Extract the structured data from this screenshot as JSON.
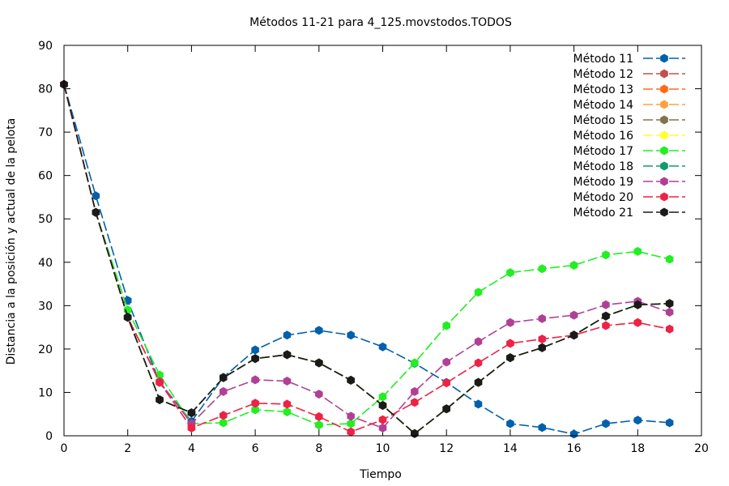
{
  "chart_data": {
    "type": "line",
    "title": "Métodos 11-21 para 4_125.movstodos.TODOS",
    "xlabel": "Tiempo",
    "ylabel": "Distancia a la posición y actual de la pelota",
    "xlim": [
      0,
      20
    ],
    "ylim": [
      0,
      90
    ],
    "xticks": [
      0,
      2,
      4,
      6,
      8,
      10,
      12,
      14,
      16,
      18,
      20
    ],
    "yticks": [
      0,
      10,
      20,
      30,
      40,
      50,
      60,
      70,
      80,
      90
    ],
    "legend_position": "top-right",
    "x": [
      0,
      1,
      2,
      3,
      4,
      5,
      6,
      7,
      8,
      9,
      10,
      11,
      12,
      13,
      14,
      15,
      16,
      17,
      18,
      19
    ],
    "series": [
      {
        "name": "Método 11",
        "color": "#0060ad",
        "values": [
          81,
          55.3,
          31.2,
          12.3,
          3.3,
          13.5,
          19.8,
          23.2,
          24.3,
          23.2,
          20.5,
          16.7,
          12.3,
          7.3,
          2.8,
          1.9,
          0.4,
          2.8,
          3.6,
          3.0
        ]
      },
      {
        "name": "Método 12",
        "color": "#c0504d",
        "values": [
          81,
          51.5,
          27.3,
          8.3,
          5.3,
          13.4,
          17.8,
          18.7,
          16.8,
          12.8,
          7.0,
          0.5,
          6.2,
          12.3,
          18.0,
          20.3,
          23.2,
          27.6,
          30.2,
          30.5
        ]
      },
      {
        "name": "Método 13",
        "color": "#ff6a1a",
        "values": [
          81,
          51.5,
          27.3,
          8.3,
          5.3,
          13.4,
          17.8,
          18.7,
          16.8,
          12.8,
          7.0,
          0.5,
          6.2,
          12.3,
          18.0,
          20.3,
          23.2,
          27.6,
          30.2,
          30.5
        ]
      },
      {
        "name": "Método 14",
        "color": "#ffa040",
        "values": [
          81,
          51.5,
          27.3,
          8.3,
          5.3,
          13.4,
          17.8,
          18.7,
          16.8,
          12.8,
          7.0,
          0.5,
          6.2,
          12.3,
          18.0,
          20.3,
          23.2,
          27.6,
          30.2,
          30.5
        ]
      },
      {
        "name": "Método 15",
        "color": "#7f7350",
        "values": [
          81,
          51.5,
          27.3,
          8.3,
          5.3,
          13.4,
          17.8,
          18.7,
          16.8,
          12.8,
          7.0,
          0.5,
          6.2,
          12.3,
          18.0,
          20.3,
          23.2,
          27.6,
          30.2,
          30.5
        ]
      },
      {
        "name": "Método 16",
        "color": "#ffff33",
        "values": [
          81,
          51.5,
          27.3,
          8.3,
          5.3,
          13.4,
          17.8,
          18.7,
          16.8,
          12.8,
          7.0,
          0.5,
          6.2,
          12.3,
          18.0,
          20.3,
          23.2,
          27.6,
          30.2,
          30.5
        ]
      },
      {
        "name": "Método 17",
        "color": "#22ee22",
        "values": [
          81,
          51.5,
          29.0,
          14.0,
          2.8,
          3.0,
          6.0,
          5.5,
          2.5,
          2.8,
          9.0,
          16.8,
          25.4,
          33.1,
          37.6,
          38.5,
          39.3,
          41.7,
          42.5,
          40.7
        ]
      },
      {
        "name": "Método 18",
        "color": "#119a6a",
        "values": [
          81,
          51.5,
          27.3,
          8.3,
          5.3,
          13.4,
          17.8,
          18.7,
          16.8,
          12.8,
          7.0,
          0.5,
          6.2,
          12.3,
          18.0,
          20.3,
          23.2,
          27.6,
          30.2,
          30.5
        ]
      },
      {
        "name": "Método 19",
        "color": "#b04095",
        "values": [
          81,
          51.5,
          27.3,
          12.5,
          2.8,
          10.2,
          12.9,
          12.6,
          9.6,
          4.5,
          1.8,
          10.2,
          17.0,
          21.7,
          26.1,
          27.0,
          27.8,
          30.2,
          31.0,
          28.5
        ]
      },
      {
        "name": "Método 20",
        "color": "#ee2244",
        "values": [
          81,
          51.5,
          27.3,
          12.3,
          1.8,
          4.7,
          7.5,
          7.3,
          4.4,
          0.9,
          3.7,
          7.7,
          12.2,
          16.8,
          21.3,
          22.3,
          23.2,
          25.4,
          26.1,
          24.6
        ]
      },
      {
        "name": "Método 21",
        "color": "#1a1a1a",
        "values": [
          81,
          51.5,
          27.3,
          8.3,
          5.3,
          13.4,
          17.8,
          18.7,
          16.8,
          12.8,
          7.0,
          0.5,
          6.2,
          12.3,
          18.0,
          20.3,
          23.2,
          27.6,
          30.2,
          30.5
        ]
      }
    ]
  }
}
